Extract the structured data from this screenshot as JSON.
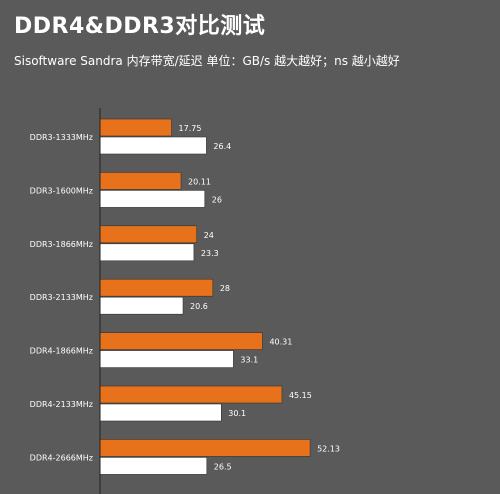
{
  "header": {
    "title": "DDR4&DDR3对比测试",
    "subtitle": "Sisoftware Sandra 内存带宽/延迟    单位：GB/s 越大越好；ns 越小越好"
  },
  "colors": {
    "background": "#5a5a5a",
    "series_a": "#e8711b",
    "series_b": "#ffffff",
    "bar_border": "#333333",
    "axis": "#222222",
    "label_text": "#ffffff"
  },
  "chart_data": {
    "type": "bar",
    "orientation": "horizontal",
    "title": "DDR4&DDR3对比测试",
    "categories": [
      "DDR3-1333MHz",
      "DDR3-1600MHz",
      "DDR3-1866MHz",
      "DDR3-2133MHz",
      "DDR4-1866MHz",
      "DDR4-2133MHz",
      "DDR4-2666MHz"
    ],
    "series": [
      {
        "values": [
          17.75,
          20.11,
          24,
          28,
          40.31,
          45.15,
          52.13
        ],
        "color": "#e8711b"
      },
      {
        "values": [
          26.4,
          26,
          23.3,
          20.6,
          33.1,
          30.1,
          26.5
        ],
        "color": "#ffffff"
      }
    ],
    "xlim": [
      0,
      90
    ],
    "grid": false,
    "legend": "none"
  }
}
